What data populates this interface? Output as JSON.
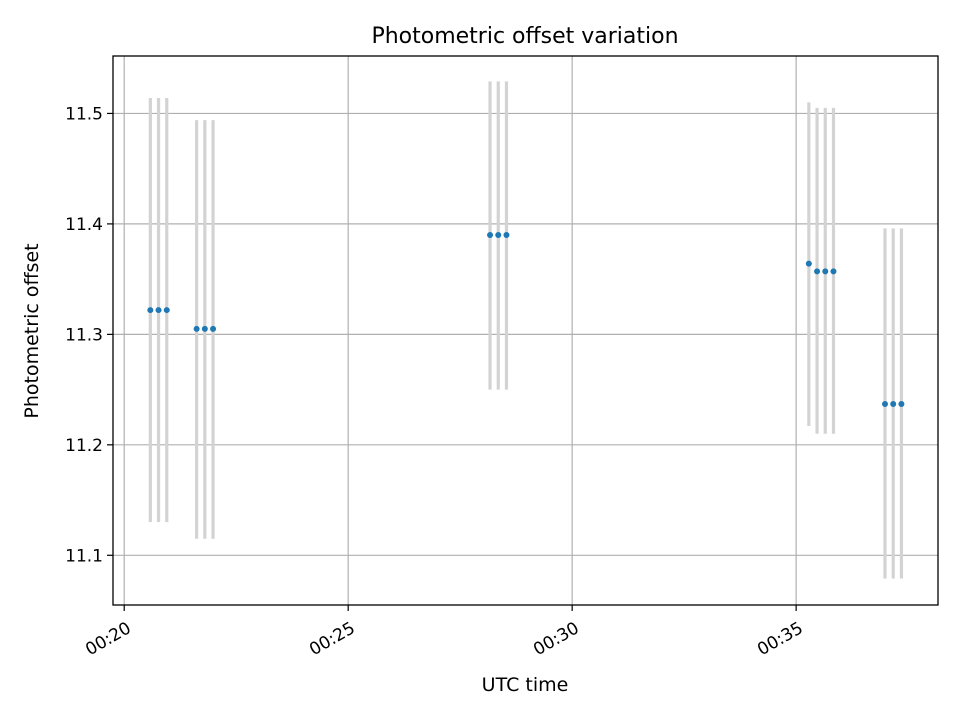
{
  "chart_data": {
    "type": "scatter",
    "title": "Photometric offset variation",
    "xlabel": "UTC time",
    "ylabel": "Photometric offset",
    "x_ticks": [
      "00:20",
      "00:25",
      "00:30",
      "00:35"
    ],
    "y_ticks": [
      11.1,
      11.2,
      11.3,
      11.4,
      11.5
    ],
    "xlim": [
      "00:19:45",
      "00:38:10"
    ],
    "ylim": [
      11.055,
      11.552
    ],
    "grid": true,
    "colors": {
      "point": "#1f77b4",
      "errorbar": "#d3d3d3",
      "grid": "#b0b0b0"
    },
    "points": [
      {
        "x": "00:20:35",
        "y": 11.322,
        "err_low": 11.13,
        "err_high": 11.514
      },
      {
        "x": "00:20:46",
        "y": 11.322,
        "err_low": 11.13,
        "err_high": 11.514
      },
      {
        "x": "00:20:57",
        "y": 11.322,
        "err_low": 11.13,
        "err_high": 11.514
      },
      {
        "x": "00:21:37",
        "y": 11.305,
        "err_low": 11.115,
        "err_high": 11.494
      },
      {
        "x": "00:21:48",
        "y": 11.305,
        "err_low": 11.115,
        "err_high": 11.494
      },
      {
        "x": "00:21:59",
        "y": 11.305,
        "err_low": 11.115,
        "err_high": 11.494
      },
      {
        "x": "00:28:10",
        "y": 11.39,
        "err_low": 11.25,
        "err_high": 11.529
      },
      {
        "x": "00:28:21",
        "y": 11.39,
        "err_low": 11.25,
        "err_high": 11.529
      },
      {
        "x": "00:28:32",
        "y": 11.39,
        "err_low": 11.25,
        "err_high": 11.529
      },
      {
        "x": "00:35:17",
        "y": 11.364,
        "err_low": 11.217,
        "err_high": 11.51
      },
      {
        "x": "00:35:28",
        "y": 11.357,
        "err_low": 11.21,
        "err_high": 11.505
      },
      {
        "x": "00:35:39",
        "y": 11.357,
        "err_low": 11.21,
        "err_high": 11.505
      },
      {
        "x": "00:35:50",
        "y": 11.357,
        "err_low": 11.21,
        "err_high": 11.505
      },
      {
        "x": "00:36:59",
        "y": 11.237,
        "err_low": 11.079,
        "err_high": 11.396
      },
      {
        "x": "00:37:10",
        "y": 11.237,
        "err_low": 11.079,
        "err_high": 11.396
      },
      {
        "x": "00:37:21",
        "y": 11.237,
        "err_low": 11.079,
        "err_high": 11.396
      }
    ]
  }
}
